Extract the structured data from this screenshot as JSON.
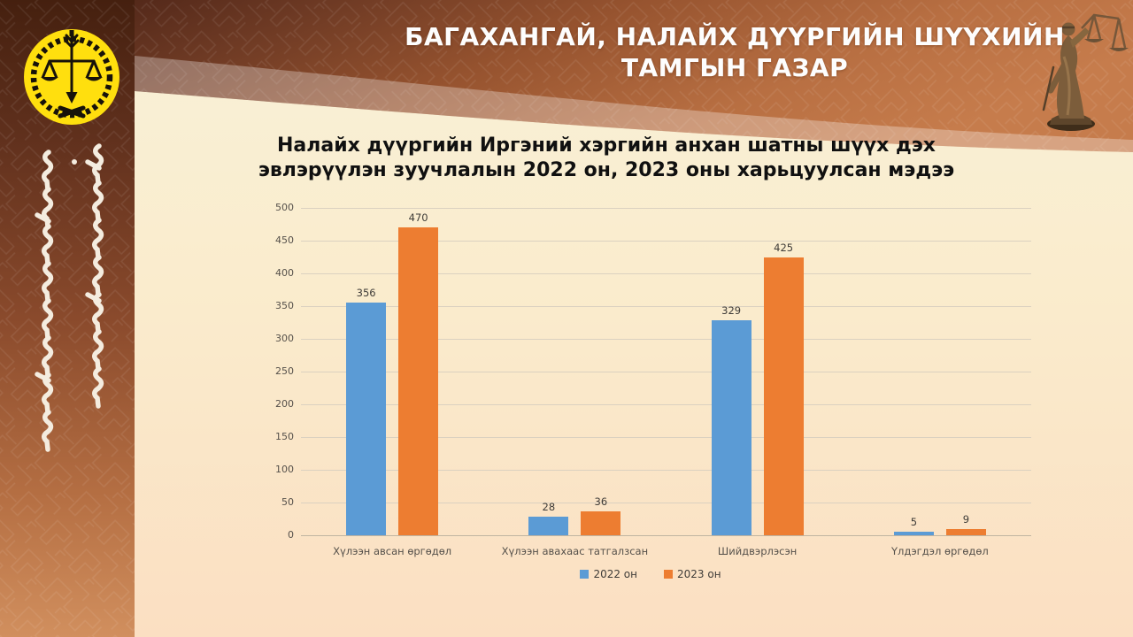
{
  "slide": {
    "header": {
      "title_line1": "БАГАХАНГАЙ, НАЛАЙХ ДҮҮРГИЙН ШҮҮХИЙН",
      "title_line2": "ТАМГЫН ГАЗАР"
    }
  },
  "chart_data": {
    "type": "bar",
    "title_line1": "Налайх дүүргийн Иргэний хэргийн анхан шатны шүүх дэх",
    "title_line2": "эвлэрүүлэн зуучлалын 2022 он, 2023 оны харьцуулсан мэдээ",
    "categories": [
      "Хүлээн авсан өргөдөл",
      "Хүлээн авахаас татгалзсан",
      "Шийдвэрлэсэн",
      "Үлдэгдэл өргөдөл"
    ],
    "series": [
      {
        "name": "2022 он",
        "color": "#5B9BD5",
        "values": [
          356,
          28,
          329,
          5
        ]
      },
      {
        "name": "2023 он",
        "color": "#ED7D31",
        "values": [
          470,
          36,
          425,
          9
        ]
      }
    ],
    "ylim": [
      0,
      500
    ],
    "ytick_step": 50,
    "grid": true,
    "legend_position": "bottom",
    "xlabel": "",
    "ylabel": ""
  },
  "icons": {
    "emblem": "scales-of-justice-court-emblem",
    "statue": "lady-justice-statue",
    "script": "mongolian-vertical-script"
  },
  "colors": {
    "series_2022": "#5B9BD5",
    "series_2023": "#ED7D31",
    "emblem_yellow": "#FFDF0E",
    "header_copper": "#C67C4C",
    "sidebar_dark": "#4E2715",
    "content_cream": "#F9F1D8",
    "content_peach": "#FBDFC2"
  }
}
